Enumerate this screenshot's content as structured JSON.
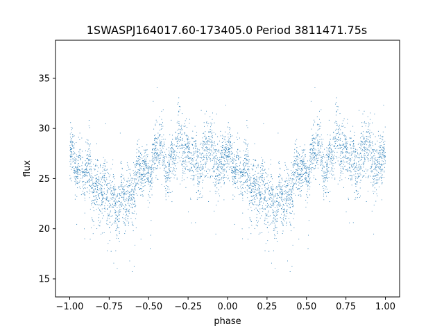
{
  "chart_data": {
    "type": "scatter",
    "title": "1SWASPJ164017.60-173405.0 Period 3811471.75s",
    "xlabel": "phase",
    "ylabel": "flux",
    "xlim": [
      -1.09,
      1.09
    ],
    "ylim": [
      13.2,
      38.8
    ],
    "x_ticks": [
      -1.0,
      -0.75,
      -0.5,
      -0.25,
      0.0,
      0.25,
      0.5,
      0.75,
      1.0
    ],
    "x_tick_labels": [
      "−1.00",
      "−0.75",
      "−0.50",
      "−0.25",
      "0.00",
      "0.25",
      "0.50",
      "0.75",
      "1.00"
    ],
    "y_ticks": [
      15,
      20,
      25,
      30,
      35
    ],
    "y_tick_labels": [
      "15",
      "20",
      "25",
      "30",
      "35"
    ],
    "grid": false,
    "legend": "none",
    "marker_color": "#1f77b4",
    "trend": {
      "phase": [
        0.0,
        0.02,
        0.05,
        0.08,
        0.1,
        0.12,
        0.15,
        0.18,
        0.2,
        0.22,
        0.25,
        0.28,
        0.3,
        0.32,
        0.35,
        0.38,
        0.4,
        0.42,
        0.45,
        0.48,
        0.5,
        0.52,
        0.55,
        0.57,
        0.6,
        0.62,
        0.65,
        0.68,
        0.7,
        0.72,
        0.75,
        0.78,
        0.8,
        0.82,
        0.85,
        0.88,
        0.9,
        0.92,
        0.95,
        0.98,
        1.0
      ],
      "flux": [
        27.0,
        26.8,
        26.5,
        26.0,
        25.6,
        25.2,
        24.6,
        24.3,
        24.0,
        23.6,
        23.2,
        22.7,
        22.5,
        22.4,
        22.6,
        23.2,
        24.0,
        24.8,
        25.5,
        26.0,
        26.2,
        26.4,
        27.0,
        28.5,
        26.8,
        26.2,
        26.8,
        28.0,
        29.5,
        28.0,
        27.5,
        26.8,
        26.2,
        25.8,
        27.2,
        28.0,
        27.5,
        27.0,
        26.3,
        27.0,
        27.2
      ],
      "spread": [
        1.6,
        1.6,
        1.7,
        1.8,
        1.9,
        2.0,
        2.0,
        2.1,
        2.1,
        2.2,
        2.2,
        2.1,
        2.0,
        2.0,
        2.0,
        2.0,
        1.9,
        1.8,
        1.7,
        1.6,
        1.5,
        1.5,
        1.6,
        2.0,
        1.6,
        1.5,
        1.7,
        2.0,
        2.2,
        2.0,
        1.9,
        1.8,
        1.9,
        2.0,
        2.0,
        2.1,
        2.0,
        1.9,
        1.9,
        1.8,
        1.6
      ]
    },
    "points_per_half": 2600
  }
}
